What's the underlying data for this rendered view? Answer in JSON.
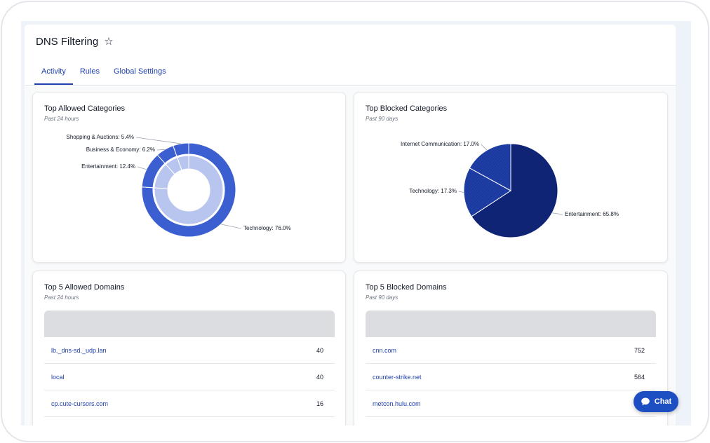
{
  "page": {
    "title": "DNS Filtering",
    "tabs": [
      {
        "label": "Activity"
      },
      {
        "label": "Rules"
      },
      {
        "label": "Global Settings"
      }
    ]
  },
  "colors": {
    "accent": "#1e40af",
    "donut_outer": "#3b5fd0",
    "donut_inner": "#b8c6ef",
    "pie_dark": "#0f2474",
    "pie_hatch": "#1f3ea6"
  },
  "allowed_categories": {
    "title": "Top Allowed Categories",
    "subtitle": "Past 24 hours"
  },
  "blocked_categories": {
    "title": "Top Blocked Categories",
    "subtitle": "Past 90 days"
  },
  "allowed_domains": {
    "title": "Top 5 Allowed Domains",
    "subtitle": "Past 24 hours",
    "rows": [
      {
        "domain": "lb._dns-sd._udp.lan",
        "count": "40"
      },
      {
        "domain": "local",
        "count": "40"
      },
      {
        "domain": "cp.cute-cursors.com",
        "count": "16"
      }
    ]
  },
  "blocked_domains": {
    "title": "Top 5 Blocked Domains",
    "subtitle": "Past 90 days",
    "rows": [
      {
        "domain": "cnn.com",
        "count": "752"
      },
      {
        "domain": "counter-strike.net",
        "count": "564"
      },
      {
        "domain": "metcon.hulu.com",
        "count": ""
      }
    ]
  },
  "chat": {
    "label": "Chat",
    "icon": "chat-bubble-icon"
  },
  "chart_data": [
    {
      "type": "pie",
      "variant": "donut",
      "title": "Top Allowed Categories",
      "subtitle": "Past 24 hours",
      "categories": [
        "Technology",
        "Entertainment",
        "Business & Economy",
        "Shopping & Auctions"
      ],
      "labels": [
        "Technology: 76.0%",
        "Entertainment: 12.4%",
        "Business & Economy: 6.2%",
        "Shopping & Auctions: 5.4%"
      ],
      "values": [
        76.0,
        12.4,
        6.2,
        5.4
      ]
    },
    {
      "type": "pie",
      "title": "Top Blocked Categories",
      "subtitle": "Past 90 days",
      "categories": [
        "Entertainment",
        "Technology",
        "Internet Communication"
      ],
      "labels": [
        "Entertainment: 65.8%",
        "Technology: 17.3%",
        "Internet Communication: 17.0%"
      ],
      "values": [
        65.8,
        17.3,
        17.0
      ]
    }
  ]
}
